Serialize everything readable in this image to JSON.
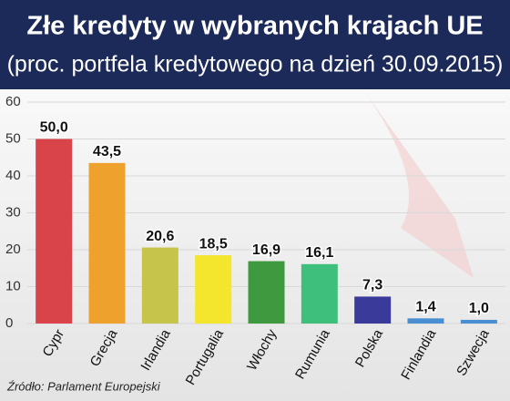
{
  "chart_data": {
    "type": "bar",
    "title": "Złe kredyty w wybranych krajach UE",
    "subtitle": "(proc. portfela kredytowego na dzień  30.09.2015)",
    "source": "Źródło: Parlament Europejski",
    "categories": [
      "Cypr",
      "Grecja",
      "Irlandia",
      "Portugalia",
      "Włochy",
      "Rumunia",
      "Polska",
      "Finlandia",
      "Szwecja"
    ],
    "values": [
      50.0,
      43.5,
      20.6,
      18.5,
      16.9,
      16.1,
      7.3,
      1.4,
      1.0
    ],
    "value_labels": [
      "50,0",
      "43,5",
      "20,6",
      "18,5",
      "16,9",
      "16,1",
      "7,3",
      "1,4",
      "1,0"
    ],
    "colors": [
      "#d9434a",
      "#eea12c",
      "#c7c44c",
      "#f4e62c",
      "#3f9a3f",
      "#3fbf7c",
      "#3a3a9a",
      "#4a8fd2",
      "#4a8fd2"
    ],
    "ylim": [
      0,
      60
    ],
    "yticks": [
      0,
      10,
      20,
      30,
      40,
      50,
      60
    ],
    "grid": true
  }
}
